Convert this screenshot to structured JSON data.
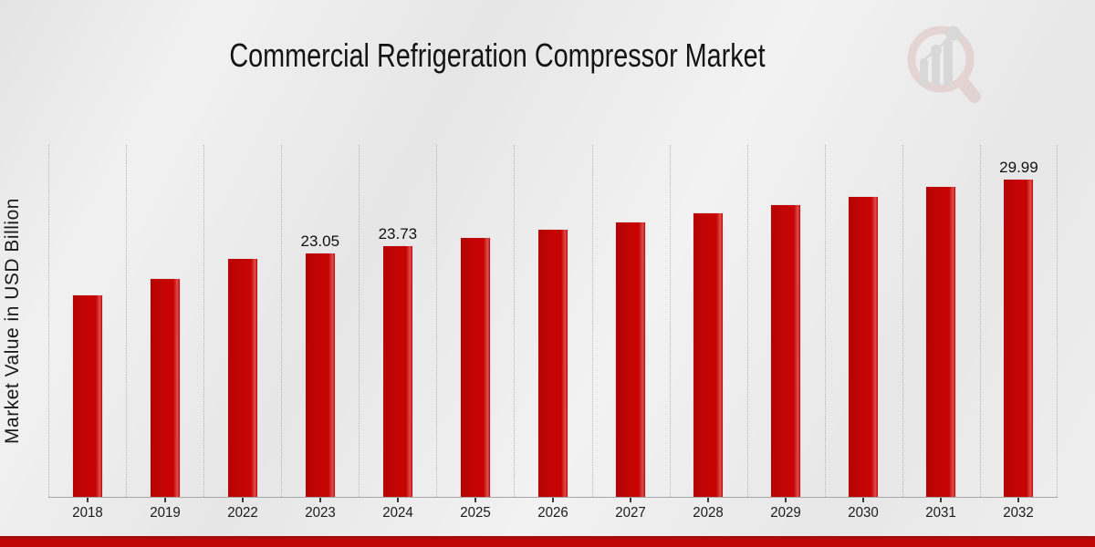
{
  "header": {
    "title": "Commercial Refrigeration Compressor Market"
  },
  "icons": {
    "logo": "magnifier-bar-chart-watermark-logo"
  },
  "colors": {
    "bar": "#c60404",
    "bar_highlight": "#dd4e4e",
    "footer_band": "#c10606",
    "gridline": "#b5b5b5",
    "background": "#eaeaea",
    "text": "#141414",
    "logo_ring": "#dcbdbd",
    "logo_bars": "#c5c5c5"
  },
  "chart_data": {
    "type": "bar",
    "title": "Commercial Refrigeration Compressor Market",
    "xlabel": "",
    "ylabel": "Market Value in USD Billion",
    "categories": [
      "2018",
      "2019",
      "2022",
      "2023",
      "2024",
      "2025",
      "2026",
      "2027",
      "2028",
      "2029",
      "2030",
      "2031",
      "2032"
    ],
    "values": [
      19.1,
      20.6,
      22.5,
      23.05,
      23.73,
      24.5,
      25.3,
      26.0,
      26.8,
      27.6,
      28.4,
      29.3,
      29.99
    ],
    "data_labels": [
      null,
      null,
      null,
      "23.05",
      "23.73",
      null,
      null,
      null,
      null,
      null,
      null,
      null,
      "29.99"
    ],
    "ylim": [
      0,
      33.2
    ],
    "y_axis_ticks_visible": false,
    "grid": "vertical-dotted",
    "legend": "none",
    "bar_color": "#c60404"
  }
}
